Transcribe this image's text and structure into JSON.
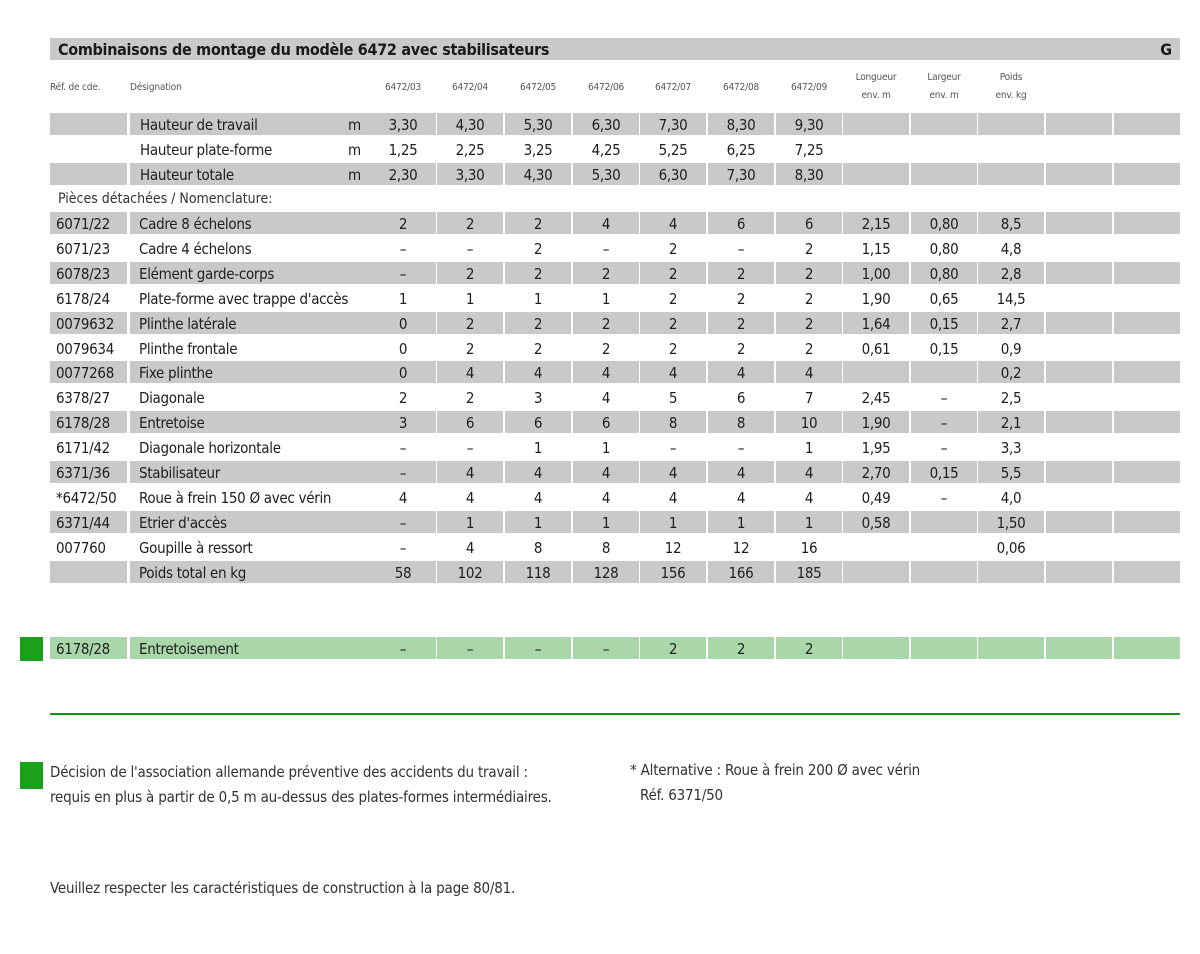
{
  "title": "Combinaisons de montage du modèle 6472 avec stabilisateurs",
  "section_letter": "G",
  "header": {
    "ref": "Réf. de cde.",
    "designation": "Désignation",
    "models": [
      "6472/03",
      "6472/04",
      "6472/05",
      "6472/06",
      "6472/07",
      "6472/08",
      "6472/09"
    ],
    "longueur": [
      "Longueur",
      "env. m"
    ],
    "largeur": [
      "Largeur",
      "env. m"
    ],
    "poids": [
      "Poids",
      "env. kg"
    ]
  },
  "heights": [
    {
      "label": "Hauteur de travail",
      "unit": "m",
      "values": [
        "3,30",
        "4,30",
        "5,30",
        "6,30",
        "7,30",
        "8,30",
        "9,30"
      ]
    },
    {
      "label": "Hauteur plate-forme",
      "unit": "m",
      "values": [
        "1,25",
        "2,25",
        "3,25",
        "4,25",
        "5,25",
        "6,25",
        "7,25"
      ]
    },
    {
      "label": "Hauteur totale",
      "unit": "m",
      "values": [
        "2,30",
        "3,30",
        "4,30",
        "5,30",
        "6,30",
        "7,30",
        "8,30"
      ]
    }
  ],
  "parts_label": "Pièces détachées / Nomenclature:",
  "parts": [
    {
      "ref": "6071/22",
      "name": "Cadre 8 échelons",
      "values": [
        "2",
        "2",
        "2",
        "4",
        "4",
        "6",
        "6"
      ],
      "longueur": "2,15",
      "largeur": "0,80",
      "poids": "8,5"
    },
    {
      "ref": "6071/23",
      "name": "Cadre 4 échelons",
      "values": [
        "–",
        "–",
        "2",
        "–",
        "2",
        "–",
        "2"
      ],
      "longueur": "1,15",
      "largeur": "0,80",
      "poids": "4,8"
    },
    {
      "ref": "6078/23",
      "name": "Elément garde-corps",
      "values": [
        "–",
        "2",
        "2",
        "2",
        "2",
        "2",
        "2"
      ],
      "longueur": "1,00",
      "largeur": "0,80",
      "poids": "2,8"
    },
    {
      "ref": "6178/24",
      "name": "Plate-forme avec trappe d'accès",
      "values": [
        "1",
        "1",
        "1",
        "1",
        "2",
        "2",
        "2"
      ],
      "longueur": "1,90",
      "largeur": "0,65",
      "poids": "14,5"
    },
    {
      "ref": "0079632",
      "name": "Plinthe latérale",
      "values": [
        "0",
        "2",
        "2",
        "2",
        "2",
        "2",
        "2"
      ],
      "longueur": "1,64",
      "largeur": "0,15",
      "poids": "2,7"
    },
    {
      "ref": "0079634",
      "name": "Plinthe frontale",
      "values": [
        "0",
        "2",
        "2",
        "2",
        "2",
        "2",
        "2"
      ],
      "longueur": "0,61",
      "largeur": "0,15",
      "poids": "0,9"
    },
    {
      "ref": "0077268",
      "name": "Fixe plinthe",
      "values": [
        "0",
        "4",
        "4",
        "4",
        "4",
        "4",
        "4"
      ],
      "longueur": "",
      "largeur": "",
      "poids": "0,2"
    },
    {
      "ref": "6378/27",
      "name": "Diagonale",
      "values": [
        "2",
        "2",
        "3",
        "4",
        "5",
        "6",
        "7"
      ],
      "longueur": "2,45",
      "largeur": "–",
      "poids": "2,5"
    },
    {
      "ref": "6178/28",
      "name": "Entretoise",
      "values": [
        "3",
        "6",
        "6",
        "6",
        "8",
        "8",
        "10"
      ],
      "longueur": "1,90",
      "largeur": "–",
      "poids": "2,1"
    },
    {
      "ref": "6171/42",
      "name": "Diagonale horizontale",
      "values": [
        "–",
        "–",
        "1",
        "1",
        "–",
        "–",
        "1"
      ],
      "longueur": "1,95",
      "largeur": "–",
      "poids": "3,3"
    },
    {
      "ref": "6371/36",
      "name": "Stabilisateur",
      "values": [
        "–",
        "4",
        "4",
        "4",
        "4",
        "4",
        "4"
      ],
      "longueur": "2,70",
      "largeur": "0,15",
      "poids": "5,5"
    },
    {
      "ref": "*6472/50",
      "name": "Roue à frein 150 Ø avec vérin",
      "values": [
        "4",
        "4",
        "4",
        "4",
        "4",
        "4",
        "4"
      ],
      "longueur": "0,49",
      "largeur": "–",
      "poids": "4,0"
    },
    {
      "ref": "6371/44",
      "name": "Etrier d'accès",
      "values": [
        "–",
        "1",
        "1",
        "1",
        "1",
        "1",
        "1"
      ],
      "longueur": "0,58",
      "largeur": "",
      "poids": "1,50"
    },
    {
      "ref": "007760",
      "name": "Goupille à ressort",
      "values": [
        "–",
        "4",
        "8",
        "8",
        "12",
        "12",
        "16"
      ],
      "longueur": "",
      "largeur": "",
      "poids": "0,06"
    }
  ],
  "total": {
    "label": "Poids total en kg",
    "values": [
      "58",
      "102",
      "118",
      "128",
      "156",
      "166",
      "185"
    ]
  },
  "extra": {
    "ref": "6178/28",
    "name": "Entretoisement",
    "values": [
      "–",
      "–",
      "–",
      "–",
      "2",
      "2",
      "2"
    ]
  },
  "notes": {
    "left": [
      "Décision de l'association allemande préventive des accidents du travail :",
      "requis en plus à partir de 0,5 m au-dessus des plates-formes intermédiaires."
    ],
    "right": [
      "* Alternative : Roue à frein 200 Ø avec vérin",
      "Réf. 6371/50"
    ],
    "bottom": "Veuillez respecter les caractéristiques de construction à la page 80/81."
  },
  "colors": {
    "grey_band": "#c8c9cb",
    "green_band": "#a9d7a9",
    "green_accent": "#1aa01a"
  }
}
